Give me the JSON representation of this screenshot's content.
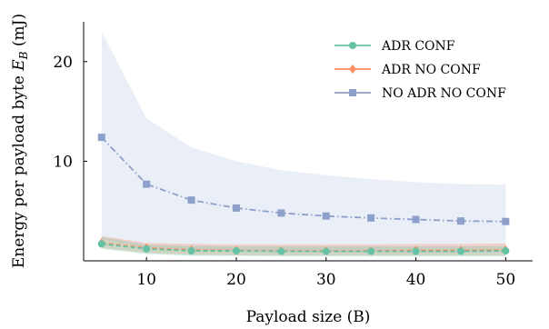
{
  "chart_data": {
    "type": "line",
    "xlabel": "Payload size (B)",
    "ylabel": "Energy per payload byte E_B (mJ)",
    "ylabel_plain": "Energy per payload byte ",
    "ylabel_symbol": "E",
    "ylabel_subscript": "B",
    "ylabel_unit": " (mJ)",
    "xlim": [
      3,
      53
    ],
    "ylim": [
      0,
      24
    ],
    "xticks": [
      10,
      20,
      30,
      40,
      50
    ],
    "yticks": [
      10,
      20
    ],
    "grid": false,
    "legend_position": "top-right",
    "x": [
      5,
      10,
      15,
      20,
      25,
      30,
      35,
      40,
      45,
      50
    ],
    "series": [
      {
        "name": "ADR CONF",
        "color": "#66c2a5",
        "marker": "circle",
        "line_style": "dashed",
        "values": [
          1.7,
          1.2,
          1.0,
          1.0,
          0.95,
          0.95,
          0.95,
          0.95,
          0.95,
          1.0
        ],
        "band_upper": [
          2.4,
          1.6,
          1.5,
          1.45,
          1.45,
          1.45,
          1.45,
          1.45,
          1.45,
          1.5
        ],
        "band_lower": [
          1.2,
          0.7,
          0.5,
          0.5,
          0.45,
          0.45,
          0.45,
          0.45,
          0.45,
          0.45
        ]
      },
      {
        "name": "ADR NO CONF",
        "color": "#fc8d62",
        "marker": "diamond",
        "line_style": "dashed",
        "values": [
          1.8,
          1.3,
          1.1,
          1.05,
          1.0,
          1.0,
          1.0,
          1.05,
          1.05,
          1.1
        ],
        "band_upper": [
          2.5,
          1.8,
          1.7,
          1.65,
          1.65,
          1.65,
          1.65,
          1.7,
          1.7,
          1.75
        ],
        "band_lower": [
          1.3,
          0.8,
          0.6,
          0.55,
          0.55,
          0.55,
          0.55,
          0.55,
          0.55,
          0.55
        ]
      },
      {
        "name": "NO ADR NO CONF",
        "color": "#8da0cb",
        "marker": "square",
        "line_style": "dash-dot",
        "values": [
          12.4,
          7.7,
          6.1,
          5.3,
          4.8,
          4.5,
          4.3,
          4.15,
          4.0,
          3.95
        ],
        "band_upper": [
          23.0,
          14.3,
          11.4,
          10.0,
          9.1,
          8.6,
          8.2,
          7.9,
          7.7,
          7.65
        ],
        "band_lower": [
          2.2,
          1.3,
          1.0,
          0.95,
          0.9,
          0.85,
          0.85,
          0.85,
          0.85,
          0.85
        ]
      }
    ]
  }
}
